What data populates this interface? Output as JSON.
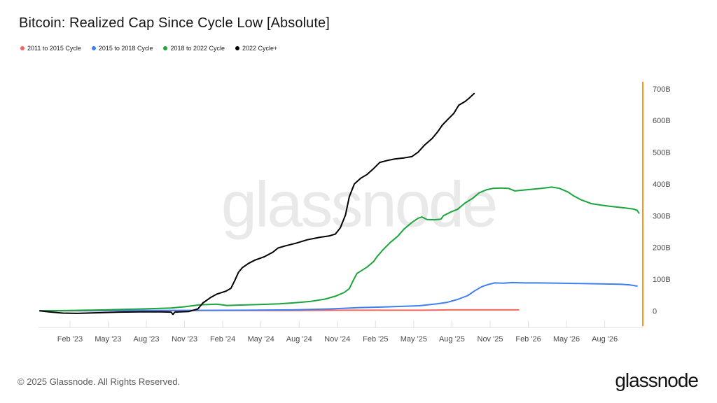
{
  "header": {
    "title": "Bitcoin: Realized Cap Since Cycle Low [Absolute]"
  },
  "legend": [
    {
      "label": "2011 to 2015 Cycle",
      "color": "#f4655b"
    },
    {
      "label": "2015 to 2018 Cycle",
      "color": "#3f7ef4"
    },
    {
      "label": "2018 to 2022 Cycle",
      "color": "#1ca53c"
    },
    {
      "label": "2022 Cycle+",
      "color": "#000000"
    }
  ],
  "watermark": {
    "text": "glassnode"
  },
  "footer": {
    "copyright": "© 2025 Glassnode. All Rights Reserved.",
    "logo_text": "glassnode"
  },
  "chart_data": {
    "type": "line",
    "title": "Bitcoin: Realized Cap Since Cycle Low [Absolute]",
    "x_unit": "calendar months (current cycle dates), cycles aligned at cycle low",
    "x_range_months": [
      0,
      47.35
    ],
    "x_ticks": [
      {
        "label": "Feb '23",
        "m": 2.36
      },
      {
        "label": "May '23",
        "m": 5.36
      },
      {
        "label": "Aug '23",
        "m": 8.36
      },
      {
        "label": "Nov '23",
        "m": 11.36
      },
      {
        "label": "Feb '24",
        "m": 14.36
      },
      {
        "label": "May '24",
        "m": 17.36
      },
      {
        "label": "Aug '24",
        "m": 20.36
      },
      {
        "label": "Nov '24",
        "m": 23.36
      },
      {
        "label": "Feb '25",
        "m": 26.36
      },
      {
        "label": "May '25",
        "m": 29.36
      },
      {
        "label": "Aug '25",
        "m": 32.36
      },
      {
        "label": "Nov '25",
        "m": 35.36
      },
      {
        "label": "Feb '26",
        "m": 38.36
      },
      {
        "label": "May '26",
        "m": 41.36
      },
      {
        "label": "Aug '26",
        "m": 44.36
      }
    ],
    "y_unit": "USD billions",
    "y_ticks": [
      {
        "label": "0",
        "v": 0
      },
      {
        "label": "100B",
        "v": 100
      },
      {
        "label": "200B",
        "v": 200
      },
      {
        "label": "300B",
        "v": 300
      },
      {
        "label": "400B",
        "v": 400
      },
      {
        "label": "500B",
        "v": 500
      },
      {
        "label": "600B",
        "v": 600
      },
      {
        "label": "700B",
        "v": 700
      }
    ],
    "y_axis_side": "right",
    "grid": false,
    "axis_color": "#f7941d",
    "series": [
      {
        "name": "2011 to 2015 Cycle",
        "color": "#f4655b",
        "points": [
          [
            0,
            0
          ],
          [
            4,
            0
          ],
          [
            8,
            1
          ],
          [
            12,
            1
          ],
          [
            16,
            1
          ],
          [
            20,
            1
          ],
          [
            24,
            2
          ],
          [
            28,
            2
          ],
          [
            30,
            2
          ],
          [
            32,
            3
          ],
          [
            34,
            3
          ],
          [
            36,
            3
          ],
          [
            37.6,
            3
          ]
        ]
      },
      {
        "name": "2015 to 2018 Cycle",
        "color": "#3f7ef4",
        "points": [
          [
            0,
            0
          ],
          [
            5.1,
            1
          ],
          [
            10.6,
            1
          ],
          [
            16.1,
            2
          ],
          [
            19.9,
            3
          ],
          [
            22.7,
            6
          ],
          [
            24.9,
            10
          ],
          [
            26.8,
            12
          ],
          [
            28.2,
            14
          ],
          [
            29.8,
            16
          ],
          [
            31.2,
            22
          ],
          [
            32.0,
            27
          ],
          [
            32.8,
            36
          ],
          [
            33.6,
            48
          ],
          [
            34.1,
            62
          ],
          [
            34.7,
            76
          ],
          [
            35.2,
            83
          ],
          [
            35.7,
            88
          ],
          [
            36.4,
            87
          ],
          [
            37.1,
            89
          ],
          [
            38.1,
            88
          ],
          [
            39.2,
            88
          ],
          [
            40.8,
            87
          ],
          [
            42.5,
            86
          ],
          [
            44.1,
            85
          ],
          [
            45.5,
            84
          ],
          [
            46.3,
            82
          ],
          [
            46.9,
            78
          ]
        ]
      },
      {
        "name": "2018 to 2022 Cycle",
        "color": "#1ca53c",
        "points": [
          [
            0,
            0
          ],
          [
            2.4,
            1
          ],
          [
            5.1,
            3
          ],
          [
            7.9,
            6
          ],
          [
            10.3,
            9
          ],
          [
            11.4,
            13
          ],
          [
            12.5,
            19
          ],
          [
            13.9,
            21
          ],
          [
            14.7,
            17
          ],
          [
            15.5,
            18
          ],
          [
            17.2,
            20
          ],
          [
            18.8,
            22
          ],
          [
            20.2,
            26
          ],
          [
            21.3,
            30
          ],
          [
            22.4,
            37
          ],
          [
            23.2,
            46
          ],
          [
            23.9,
            58
          ],
          [
            24.3,
            70
          ],
          [
            24.6,
            95
          ],
          [
            24.9,
            118
          ],
          [
            25.3,
            128
          ],
          [
            25.7,
            138
          ],
          [
            26.2,
            155
          ],
          [
            26.5,
            172
          ],
          [
            27.0,
            195
          ],
          [
            27.5,
            215
          ],
          [
            28.1,
            235
          ],
          [
            28.6,
            258
          ],
          [
            29.2,
            278
          ],
          [
            29.7,
            292
          ],
          [
            30.0,
            296
          ],
          [
            30.4,
            288
          ],
          [
            31.0,
            287
          ],
          [
            31.5,
            289
          ],
          [
            31.7,
            300
          ],
          [
            32.3,
            312
          ],
          [
            32.8,
            320
          ],
          [
            33.4,
            340
          ],
          [
            34.0,
            355
          ],
          [
            34.5,
            372
          ],
          [
            35.1,
            382
          ],
          [
            35.6,
            386
          ],
          [
            36.2,
            387
          ],
          [
            36.8,
            386
          ],
          [
            37.3,
            378
          ],
          [
            37.8,
            380
          ],
          [
            38.6,
            383
          ],
          [
            39.4,
            386
          ],
          [
            40.2,
            390
          ],
          [
            40.8,
            386
          ],
          [
            41.5,
            374
          ],
          [
            41.9,
            363
          ],
          [
            42.5,
            350
          ],
          [
            43.3,
            338
          ],
          [
            44.1,
            333
          ],
          [
            44.9,
            329
          ],
          [
            45.8,
            325
          ],
          [
            46.6,
            321
          ],
          [
            46.9,
            317
          ],
          [
            47.05,
            308
          ]
        ]
      },
      {
        "name": "2022 Cycle+",
        "color": "#000000",
        "points": [
          [
            0,
            0
          ],
          [
            0.7,
            -3
          ],
          [
            1.8,
            -7
          ],
          [
            2.9,
            -8
          ],
          [
            4.6,
            -6
          ],
          [
            6.2,
            -4
          ],
          [
            7.9,
            -3
          ],
          [
            9.5,
            -3
          ],
          [
            10.3,
            -4
          ],
          [
            10.45,
            -11
          ],
          [
            10.6,
            -4
          ],
          [
            11.7,
            -2
          ],
          [
            12.4,
            6
          ],
          [
            12.8,
            25
          ],
          [
            13.4,
            42
          ],
          [
            13.9,
            53
          ],
          [
            14.6,
            62
          ],
          [
            15.0,
            71
          ],
          [
            15.3,
            95
          ],
          [
            15.6,
            122
          ],
          [
            15.9,
            136
          ],
          [
            16.4,
            150
          ],
          [
            16.9,
            160
          ],
          [
            17.6,
            170
          ],
          [
            18.3,
            185
          ],
          [
            18.7,
            198
          ],
          [
            19.3,
            205
          ],
          [
            20.1,
            213
          ],
          [
            21.0,
            224
          ],
          [
            22.0,
            232
          ],
          [
            22.7,
            236
          ],
          [
            23.2,
            242
          ],
          [
            23.6,
            262
          ],
          [
            24.0,
            302
          ],
          [
            24.3,
            360
          ],
          [
            24.7,
            400
          ],
          [
            25.2,
            418
          ],
          [
            25.7,
            430
          ],
          [
            26.2,
            448
          ],
          [
            26.7,
            468
          ],
          [
            27.3,
            474
          ],
          [
            27.9,
            479
          ],
          [
            28.6,
            482
          ],
          [
            29.2,
            486
          ],
          [
            29.7,
            500
          ],
          [
            30.2,
            522
          ],
          [
            30.8,
            543
          ],
          [
            31.2,
            562
          ],
          [
            31.6,
            585
          ],
          [
            32.0,
            602
          ],
          [
            32.5,
            622
          ],
          [
            32.9,
            648
          ],
          [
            33.4,
            660
          ],
          [
            33.7,
            670
          ],
          [
            34.1,
            685
          ]
        ]
      }
    ]
  }
}
